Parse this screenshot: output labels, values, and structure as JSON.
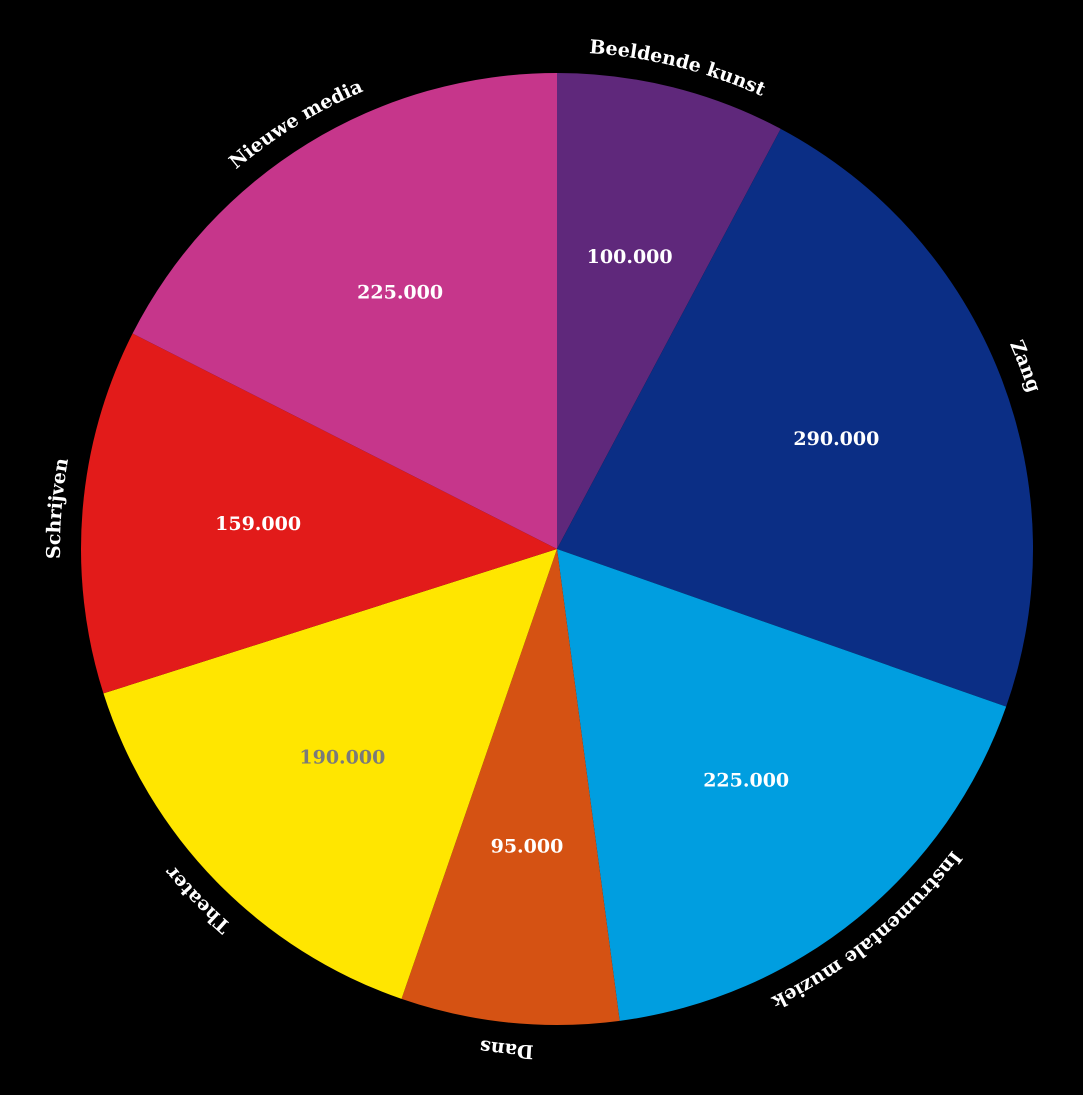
{
  "chart_data": {
    "type": "pie",
    "title": "",
    "start_angle_deg": 0,
    "direction": "clockwise",
    "slices": [
      {
        "label": "Beeldende kunst",
        "value": 100000,
        "display_value": "100.000",
        "color": "#5f287b",
        "value_color": "#ffffff"
      },
      {
        "label": "Zang",
        "value": 290000,
        "display_value": "290.000",
        "color": "#0b2e85",
        "value_color": "#ffffff"
      },
      {
        "label": "Instrumentale muziek",
        "value": 225000,
        "display_value": "225.000",
        "color": "#009ee0",
        "value_color": "#ffffff"
      },
      {
        "label": "Dans",
        "value": 95000,
        "display_value": "95.000",
        "color": "#d55213",
        "value_color": "#ffffff"
      },
      {
        "label": "Theater",
        "value": 190000,
        "display_value": "190.000",
        "color": "#ffe600",
        "value_color": "#7a7a7a"
      },
      {
        "label": "Schrijven",
        "value": 159000,
        "display_value": "159.000",
        "color": "#e21b1a",
        "value_color": "#ffffff"
      },
      {
        "label": "Nieuwe media",
        "value": 225000,
        "display_value": "225.000",
        "color": "#c6368b",
        "value_color": "#ffffff"
      }
    ],
    "background": "#000000",
    "legend": "none",
    "labels": "outside-curved"
  }
}
